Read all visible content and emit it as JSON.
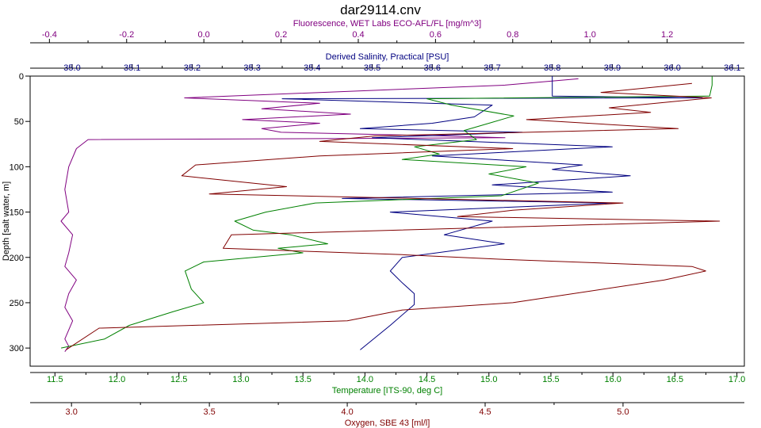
{
  "chart_data": {
    "type": "line",
    "title": "dar29114.cnv",
    "grid": false,
    "legend": "none",
    "y_axis": {
      "label": "Depth [salt water, m]",
      "range": [
        0,
        320
      ],
      "reversed": true,
      "ticks": [
        0,
        50,
        100,
        150,
        200,
        250,
        300
      ],
      "tick_labels": [
        "0",
        "50",
        "100",
        "150",
        "200",
        "250",
        "300"
      ],
      "color": "#000000"
    },
    "x_axes": [
      {
        "key": "fluorescence",
        "label": "Fluorescence, WET Labs ECO-AFL/FL [mg/m^3]",
        "position": "top-outer",
        "range": [
          -0.45,
          1.4
        ],
        "ticks": [
          -0.4,
          -0.2,
          0.0,
          0.2,
          0.4,
          0.6,
          0.8,
          1.0,
          1.2
        ],
        "tick_labels": [
          "-0.4",
          "-0.2",
          "0.0",
          "0.2",
          "0.4",
          "0.6",
          "0.8",
          "1.0",
          "1.2"
        ],
        "color": "#800080"
      },
      {
        "key": "salinity",
        "label": "Derived Salinity, Practical [PSU]",
        "position": "top-inner",
        "range": [
          34.93,
          36.12
        ],
        "ticks": [
          35.0,
          35.1,
          35.2,
          35.3,
          35.4,
          35.5,
          35.6,
          35.7,
          35.8,
          35.9,
          36.0,
          36.1
        ],
        "tick_labels": [
          "35.0",
          "35.1",
          "35.2",
          "35.3",
          "35.4",
          "35.5",
          "35.6",
          "35.7",
          "35.8",
          "35.9",
          "36.0",
          "36.1"
        ],
        "color": "#000080"
      },
      {
        "key": "temperature",
        "label": "Temperature [ITS-90, deg C]",
        "position": "bottom-inner",
        "range": [
          11.3,
          17.06
        ],
        "ticks": [
          11.5,
          12.0,
          12.5,
          13.0,
          13.5,
          14.0,
          14.5,
          15.0,
          15.5,
          16.0,
          16.5,
          17.0
        ],
        "tick_labels": [
          "11.5",
          "12.0",
          "12.5",
          "13.0",
          "13.5",
          "14.0",
          "14.5",
          "15.0",
          "15.5",
          "16.0",
          "16.5",
          "17.0"
        ],
        "color": "#008000"
      },
      {
        "key": "oxygen",
        "label": "Oxygen, SBE 43 [ml/l]",
        "position": "bottom-outer",
        "range": [
          2.85,
          5.44
        ],
        "ticks": [
          3.0,
          3.5,
          4.0,
          4.5,
          5.0
        ],
        "tick_labels": [
          "3.0",
          "3.5",
          "4.0",
          "4.5",
          "5.0"
        ],
        "color": "#800000"
      }
    ],
    "series": [
      {
        "key": "fluorescence",
        "color": "#800080",
        "x": [
          0.97,
          0.78,
          -0.05,
          0.3,
          0.15,
          0.38,
          0.1,
          0.3,
          0.15,
          0.2,
          0.62,
          0.78,
          0.3,
          -0.3,
          -0.33,
          -0.35,
          -0.36,
          -0.35,
          -0.37,
          -0.34,
          -0.35,
          -0.36,
          -0.33,
          -0.35,
          -0.36,
          -0.34,
          -0.35,
          -0.36,
          -0.35,
          -0.36
        ],
        "depth": [
          3,
          10,
          24,
          30,
          36,
          42,
          48,
          52,
          58,
          62,
          66,
          68,
          69,
          70,
          80,
          100,
          125,
          150,
          160,
          175,
          195,
          210,
          225,
          240,
          255,
          270,
          280,
          290,
          298,
          304
        ]
      },
      {
        "key": "salinity",
        "color": "#000080",
        "x": [
          35.8,
          35.8,
          35.8,
          36.05,
          35.35,
          35.7,
          35.67,
          35.6,
          35.48,
          35.75,
          35.5,
          35.9,
          35.6,
          35.85,
          35.8,
          35.93,
          35.7,
          35.9,
          35.45,
          35.9,
          35.53,
          35.7,
          35.62,
          35.72,
          35.55,
          35.53,
          35.55,
          35.57,
          35.57,
          35.53,
          35.48
        ],
        "depth": [
          0,
          10,
          22,
          24,
          25,
          32,
          45,
          52,
          58,
          62,
          68,
          78,
          88,
          98,
          103,
          110,
          120,
          128,
          135,
          140,
          150,
          160,
          175,
          185,
          200,
          215,
          228,
          240,
          252,
          275,
          302
        ]
      },
      {
        "key": "temperature",
        "color": "#008000",
        "x": [
          16.8,
          16.8,
          16.78,
          14.5,
          14.7,
          15.2,
          15.0,
          14.8,
          14.9,
          14.4,
          14.6,
          14.3,
          15.3,
          15.0,
          15.4,
          15.1,
          13.6,
          13.2,
          12.95,
          13.1,
          13.4,
          13.7,
          13.3,
          13.5,
          12.7,
          12.55,
          12.6,
          12.7,
          12.45,
          12.1,
          11.9,
          11.55
        ],
        "depth": [
          0,
          10,
          22,
          25,
          32,
          44,
          52,
          60,
          70,
          78,
          86,
          92,
          100,
          108,
          118,
          132,
          140,
          150,
          160,
          170,
          175,
          185,
          190,
          195,
          205,
          215,
          235,
          250,
          260,
          275,
          290,
          300
        ]
      },
      {
        "key": "oxygen",
        "color": "#800000",
        "x": [
          5.25,
          4.92,
          5.32,
          4.95,
          5.1,
          4.65,
          5.2,
          4.1,
          3.9,
          4.6,
          3.9,
          3.45,
          3.4,
          3.78,
          3.5,
          5.0,
          4.6,
          4.4,
          5.35,
          3.58,
          3.55,
          4.2,
          4.55,
          5.25,
          5.3,
          5.15,
          4.6,
          4.2,
          4.0,
          3.1,
          2.98
        ],
        "depth": [
          8,
          18,
          24,
          35,
          40,
          48,
          58,
          66,
          72,
          80,
          88,
          98,
          110,
          122,
          130,
          140,
          148,
          155,
          160,
          175,
          190,
          197,
          202,
          210,
          215,
          225,
          250,
          258,
          270,
          278,
          302
        ]
      }
    ]
  }
}
